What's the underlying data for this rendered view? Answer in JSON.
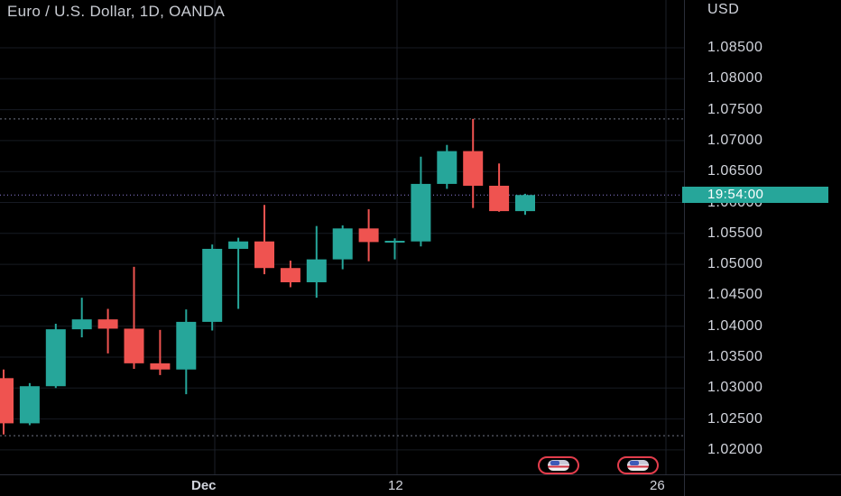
{
  "chart_title": "Euro / U.S. Dollar, 1D, OANDA",
  "currency": "USD",
  "countdown": "19:54:00",
  "colors": {
    "up": "#26a69a",
    "down": "#ef5350",
    "grid": "#2a2e39",
    "background": "#000000"
  },
  "price_axis_labels": [
    "1.08500",
    "1.08000",
    "1.07500",
    "1.07000",
    "1.06500",
    "1.06000",
    "1.05500",
    "1.05000",
    "1.04500",
    "1.04000",
    "1.03500",
    "1.03000",
    "1.02500",
    "1.02000"
  ],
  "date_labels": [
    "Dec",
    "12",
    "26"
  ],
  "event_markers": [
    "us-flag-icon",
    "us-flag-icon"
  ],
  "chart_data": {
    "type": "candlestick",
    "title": "Euro / U.S. Dollar, 1D, OANDA",
    "ylabel": "USD",
    "ylim": [
      1.017,
      1.09
    ],
    "x_tick_labels": [
      "Dec",
      "12",
      "26"
    ],
    "grid": true,
    "reference_lines": [
      1.0735,
      1.0223
    ],
    "candles": [
      {
        "open": 1.0316,
        "high": 1.033,
        "low": 1.0225,
        "close": 1.0243
      },
      {
        "open": 1.0243,
        "high": 1.0308,
        "low": 1.024,
        "close": 1.0303
      },
      {
        "open": 1.0303,
        "high": 1.0404,
        "low": 1.03,
        "close": 1.0395
      },
      {
        "open": 1.0395,
        "high": 1.0446,
        "low": 1.0382,
        "close": 1.0411
      },
      {
        "open": 1.0411,
        "high": 1.0428,
        "low": 1.0356,
        "close": 1.0396
      },
      {
        "open": 1.0396,
        "high": 1.0496,
        "low": 1.0331,
        "close": 1.034
      },
      {
        "open": 1.034,
        "high": 1.0394,
        "low": 1.0321,
        "close": 1.033
      },
      {
        "open": 1.033,
        "high": 1.0427,
        "low": 1.029,
        "close": 1.0407
      },
      {
        "open": 1.0407,
        "high": 1.0532,
        "low": 1.0393,
        "close": 1.0525
      },
      {
        "open": 1.0525,
        "high": 1.0543,
        "low": 1.0428,
        "close": 1.0537
      },
      {
        "open": 1.0537,
        "high": 1.0596,
        "low": 1.0484,
        "close": 1.0494
      },
      {
        "open": 1.0494,
        "high": 1.0506,
        "low": 1.0463,
        "close": 1.0471
      },
      {
        "open": 1.0471,
        "high": 1.0562,
        "low": 1.0446,
        "close": 1.0508
      },
      {
        "open": 1.0508,
        "high": 1.0563,
        "low": 1.0492,
        "close": 1.0558
      },
      {
        "open": 1.0558,
        "high": 1.0589,
        "low": 1.0505,
        "close": 1.0536
      },
      {
        "open": 1.0536,
        "high": 1.0542,
        "low": 1.0508,
        "close": 1.0538
      },
      {
        "open": 1.0537,
        "high": 1.0674,
        "low": 1.0529,
        "close": 1.063
      },
      {
        "open": 1.063,
        "high": 1.0693,
        "low": 1.0622,
        "close": 1.0683
      },
      {
        "open": 1.0683,
        "high": 1.0735,
        "low": 1.0591,
        "close": 1.0627
      },
      {
        "open": 1.0627,
        "high": 1.0663,
        "low": 1.0585,
        "close": 1.0586
      },
      {
        "open": 1.0586,
        "high": 1.0614,
        "low": 1.058,
        "close": 1.0612
      }
    ]
  }
}
